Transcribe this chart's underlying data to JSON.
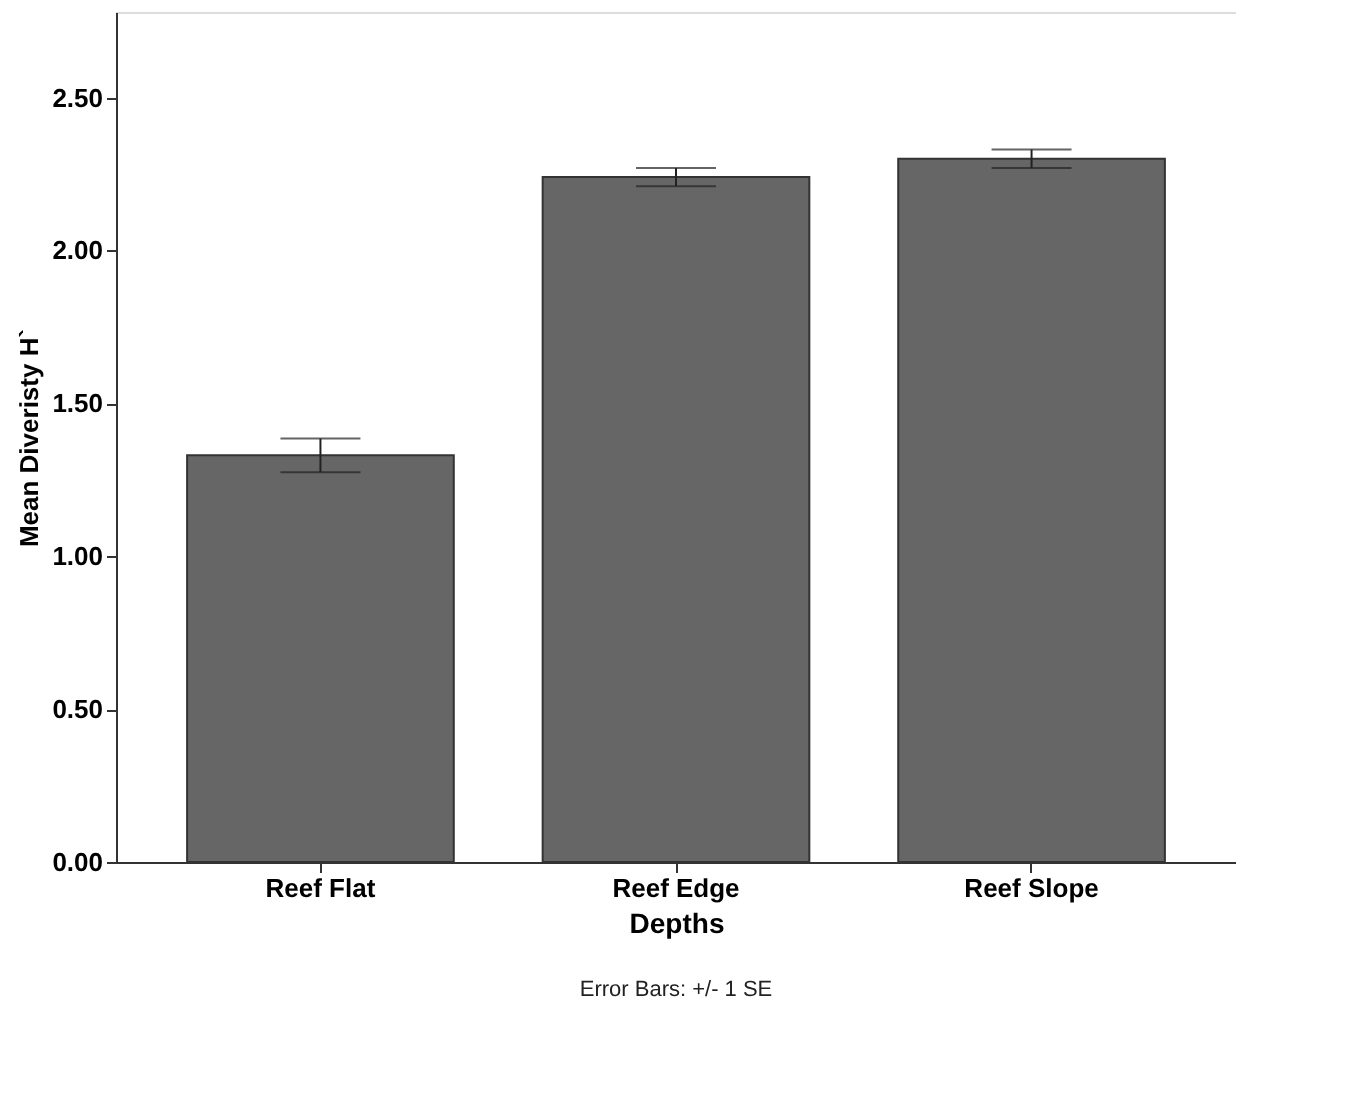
{
  "chart_data": {
    "type": "bar",
    "categories": [
      "Reef Flat",
      "Reef Edge",
      "Reef Slope"
    ],
    "values": [
      1.33,
      2.24,
      2.3
    ],
    "errors": [
      0.055,
      0.03,
      0.03
    ],
    "color": "#666666",
    "xlabel": "Depths",
    "ylabel": "Mean Diveristy H`",
    "ylim": [
      0,
      2.78
    ],
    "yticks": [
      {
        "value": 0,
        "label": "0.00"
      },
      {
        "value": 0.5,
        "label": "0.50"
      },
      {
        "value": 1,
        "label": "1.00"
      },
      {
        "value": 1.5,
        "label": "1.50"
      },
      {
        "value": 2,
        "label": "2.00"
      },
      {
        "value": 2.5,
        "label": "2.50"
      }
    ],
    "grid": false,
    "annotations": [
      "Error Bars: +/- 1 SE"
    ]
  }
}
